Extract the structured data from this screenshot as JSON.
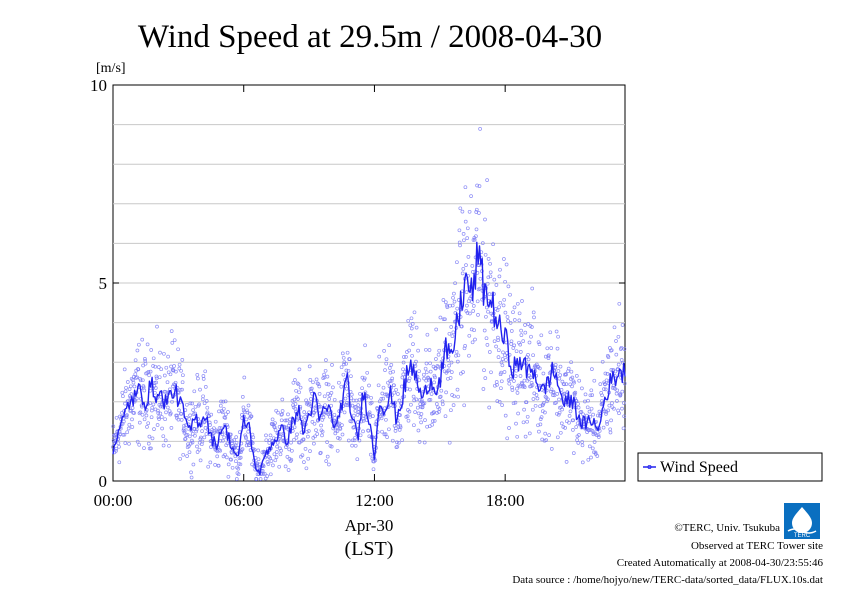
{
  "chart_data": {
    "type": "line",
    "title": "Wind Speed at 29.5m / 2008-04-30",
    "ylabel": "[m/s]",
    "ylim": [
      0,
      10
    ],
    "yticks": [
      0,
      5,
      10
    ],
    "xlim": [
      0,
      23.5
    ],
    "xticks": [
      0,
      6,
      12,
      18
    ],
    "xtick_labels": [
      "00:00",
      "06:00",
      "12:00",
      "18:00"
    ],
    "date_label": "Apr-30",
    "xlabel": "(LST)",
    "grid": true,
    "legend_position": "right",
    "series": [
      {
        "name": "Wind Speed",
        "color": "#2222ee",
        "x": [
          0.0,
          0.25,
          0.5,
          0.75,
          1.0,
          1.25,
          1.5,
          1.75,
          2.0,
          2.25,
          2.5,
          2.75,
          3.0,
          3.25,
          3.5,
          3.75,
          4.0,
          4.25,
          4.5,
          4.75,
          5.0,
          5.25,
          5.5,
          5.75,
          6.0,
          6.25,
          6.5,
          6.75,
          7.0,
          7.25,
          7.5,
          7.75,
          8.0,
          8.25,
          8.5,
          8.75,
          9.0,
          9.25,
          9.5,
          9.75,
          10.0,
          10.25,
          10.5,
          10.75,
          11.0,
          11.25,
          11.5,
          11.75,
          12.0,
          12.25,
          12.5,
          12.75,
          13.0,
          13.25,
          13.5,
          13.75,
          14.0,
          14.25,
          14.5,
          14.75,
          15.0,
          15.25,
          15.5,
          15.75,
          16.0,
          16.25,
          16.5,
          16.75,
          17.0,
          17.25,
          17.5,
          17.75,
          18.0,
          18.25,
          18.5,
          18.75,
          19.0,
          19.25,
          19.5,
          19.75,
          20.0,
          20.25,
          20.5,
          20.75,
          21.0,
          21.25,
          21.5,
          21.75,
          22.0,
          22.25,
          22.5,
          22.75,
          23.0,
          23.25,
          23.5
        ],
        "values": [
          0.8,
          1.2,
          1.6,
          2.0,
          2.1,
          2.3,
          2.0,
          2.4,
          2.2,
          2.1,
          2.0,
          2.3,
          2.1,
          1.7,
          1.2,
          1.6,
          1.5,
          1.7,
          1.1,
          0.9,
          1.4,
          1.2,
          0.8,
          0.6,
          1.5,
          1.4,
          0.4,
          0.2,
          0.7,
          0.9,
          1.1,
          1.3,
          1.0,
          1.5,
          1.8,
          1.2,
          1.7,
          2.1,
          1.5,
          1.9,
          1.7,
          1.3,
          2.0,
          2.5,
          1.5,
          1.1,
          2.3,
          1.6,
          0.6,
          2.1,
          1.8,
          2.2,
          1.6,
          2.0,
          2.7,
          2.9,
          2.4,
          2.0,
          2.6,
          2.4,
          2.5,
          3.3,
          3.0,
          3.8,
          4.6,
          5.1,
          4.6,
          5.8,
          4.9,
          4.6,
          4.3,
          3.8,
          3.6,
          3.0,
          2.8,
          3.1,
          2.7,
          2.9,
          2.5,
          2.2,
          2.6,
          2.8,
          2.3,
          1.9,
          2.1,
          1.8,
          1.5,
          1.4,
          1.6,
          1.2,
          1.9,
          2.4,
          2.6,
          2.8,
          2.7
        ]
      }
    ]
  },
  "footer": {
    "copyright": "©TERC, Univ. Tsukuba",
    "observed": "Observed at TERC Tower site",
    "created": "Created Automatically at 2008-04-30/23:55:46",
    "source": "Data source : /home/hojyo/new/TERC-data/sorted_data/FLUX.10s.dat"
  },
  "logo": {
    "text": "TERC",
    "color": "#0a6fc0"
  }
}
